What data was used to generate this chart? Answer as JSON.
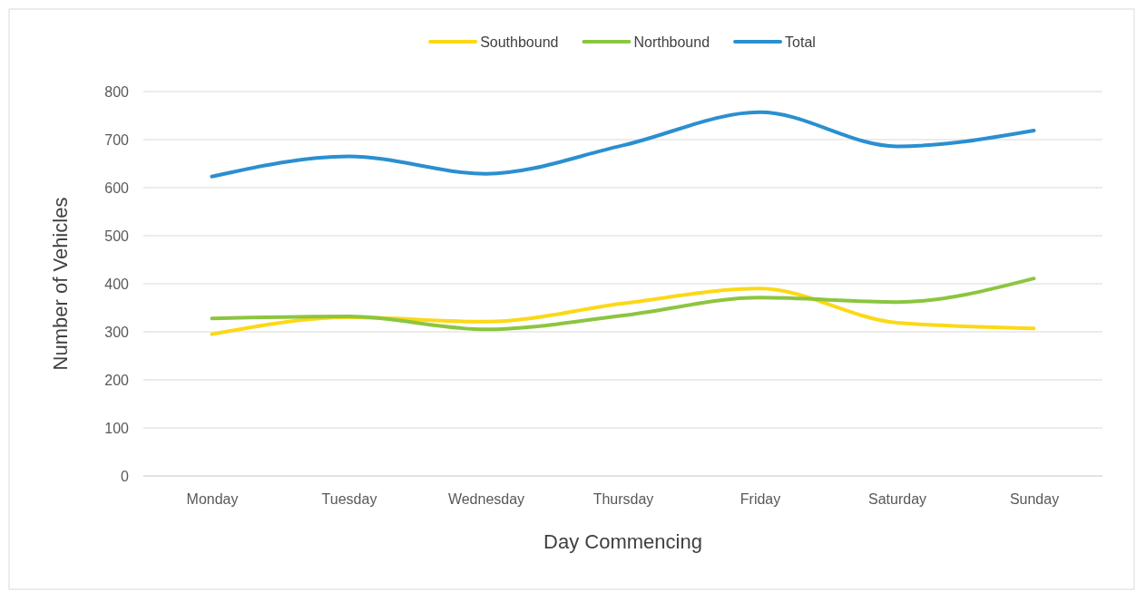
{
  "chart_data": {
    "type": "line",
    "xlabel": "Day Commencing",
    "ylabel": "Number of Vehicles",
    "categories": [
      "Monday",
      "Tuesday",
      "Wednesday",
      "Thursday",
      "Friday",
      "Saturday",
      "Sunday"
    ],
    "series": [
      {
        "name": "Southbound",
        "color": "#fcd817",
        "values": [
          295,
          330,
          321,
          359,
          390,
          319,
          307
        ]
      },
      {
        "name": "Northbound",
        "color": "#8cc540",
        "values": [
          328,
          332,
          305,
          334,
          371,
          362,
          411
        ]
      },
      {
        "name": "Total",
        "color": "#2b8fd0",
        "values": [
          623,
          665,
          629,
          688,
          757,
          686,
          719
        ]
      }
    ],
    "ylim": [
      0,
      800
    ],
    "yticks": [
      0,
      100,
      200,
      300,
      400,
      500,
      600,
      700,
      800
    ],
    "grid": "y",
    "legend": "top",
    "marker": "none",
    "line_style": "solid"
  }
}
